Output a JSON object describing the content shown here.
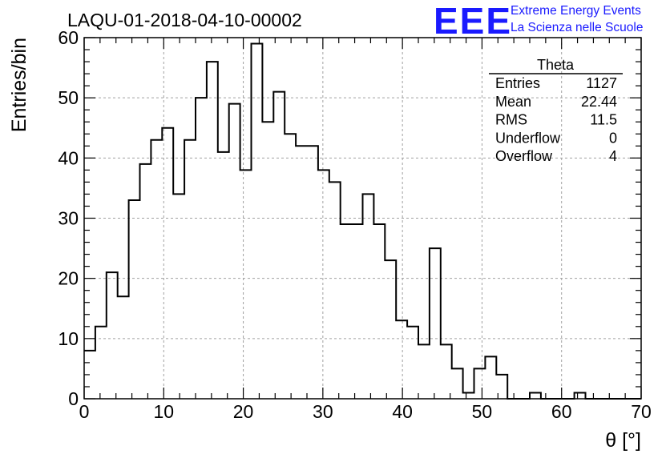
{
  "chart_data": {
    "type": "histogram",
    "title": "LAQU-01-2018-04-10-00002",
    "xlabel": "θ [°]",
    "ylabel": "Entries/bin",
    "xlim": [
      0,
      70
    ],
    "ylim": [
      0,
      60
    ],
    "grid": true,
    "x_ticks": [
      0,
      10,
      20,
      30,
      40,
      50,
      60,
      70
    ],
    "y_ticks": [
      0,
      10,
      20,
      30,
      40,
      50,
      60
    ],
    "bin_width": 1.4,
    "bin_counts": [
      8,
      12,
      21,
      17,
      33,
      39,
      43,
      45,
      34,
      43,
      50,
      56,
      41,
      49,
      38,
      59,
      46,
      51,
      44,
      42,
      42,
      38,
      36,
      29,
      29,
      34,
      29,
      23,
      13,
      12,
      9,
      25,
      9,
      5,
      1,
      5,
      7,
      4,
      0,
      0,
      1,
      0,
      0,
      0,
      1,
      0,
      0,
      0,
      0,
      0
    ]
  },
  "stats_box": {
    "title": "Theta",
    "rows": [
      {
        "label": "Entries",
        "value": "1127"
      },
      {
        "label": "Mean",
        "value": "22.44"
      },
      {
        "label": "RMS",
        "value": "11.5"
      },
      {
        "label": "Underflow",
        "value": "0"
      },
      {
        "label": "Overflow",
        "value": "4"
      }
    ]
  },
  "logo": {
    "mark": "EEE",
    "line1": "Extreme Energy Events",
    "line2": "La Scienza nelle Scuole"
  },
  "colors": {
    "histogram": "#000000",
    "grid": "#a0a0a0",
    "logo": "#1a1aff"
  }
}
